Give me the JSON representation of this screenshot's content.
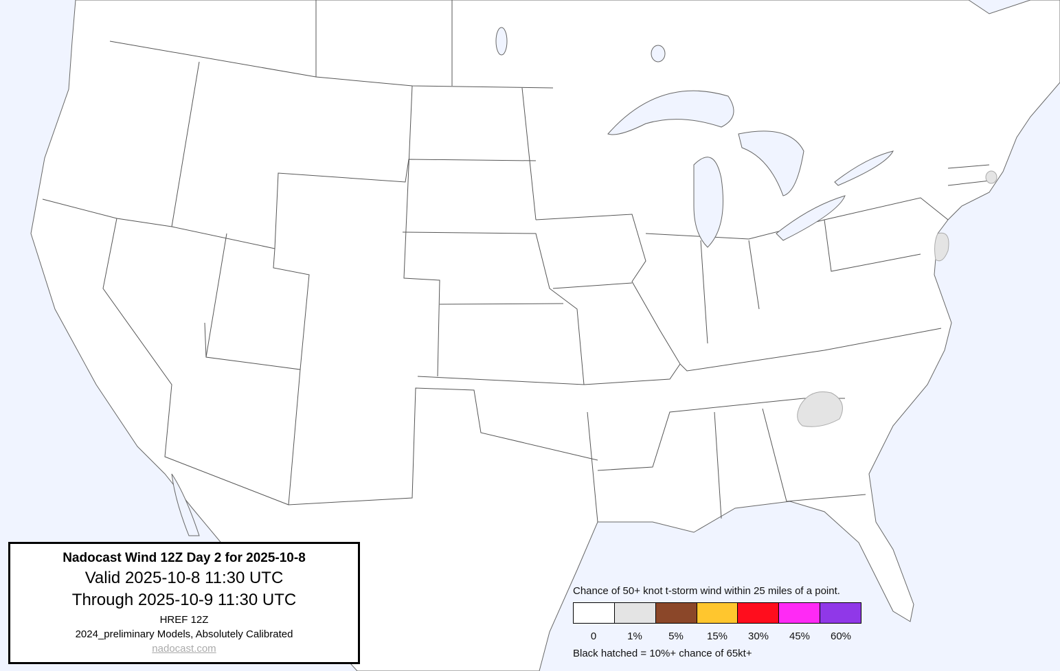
{
  "title_box": {
    "title": "Nadocast Wind 12Z Day 2 for 2025-10-8",
    "valid": "Valid 2025-10-8 11:30 UTC",
    "through": "Through 2025-10-9 11:30 UTC",
    "model": "HREF 12Z",
    "calibration": "2024_preliminary Models, Absolutely Calibrated",
    "site": "nadocast.com"
  },
  "legend": {
    "heading": "Chance of 50+ knot t-storm wind within 25 miles of a point.",
    "bins": [
      {
        "label": "0",
        "color": "#ffffff"
      },
      {
        "label": "1%",
        "color": "#e4e4e4"
      },
      {
        "label": "5%",
        "color": "#8b4729"
      },
      {
        "label": "15%",
        "color": "#ffc62e"
      },
      {
        "label": "30%",
        "color": "#ff0d1d"
      },
      {
        "label": "45%",
        "color": "#ff2af5"
      },
      {
        "label": "60%",
        "color": "#9038e8"
      }
    ],
    "hatch_note": "Black hatched = 10%+ chance of 65kt+"
  },
  "colors": {
    "water": "#f0f4ff",
    "land": "#ffffff",
    "borders": "#555555",
    "prob_1pct": "#e4e4e4"
  }
}
